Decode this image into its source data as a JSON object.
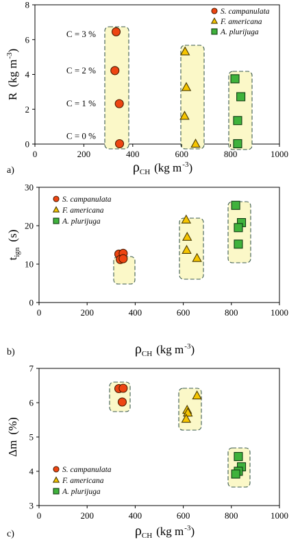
{
  "x_axis_label": {
    "main": "ρ",
    "sub": "CH",
    "units": "(kg m",
    "sup": "-3",
    "close": ")"
  },
  "legend_labels": {
    "s": "S. campanulata",
    "f": "F. americana",
    "a": "A. plurijuga"
  },
  "colors": {
    "s_campanulata": "#ee4512",
    "f_americana": "#f6c500",
    "a_plurijuga": "#3fb23c",
    "group_box_fill": "#fbf8c8",
    "group_box_stroke": "#3a5a4f"
  },
  "chart_data": [
    {
      "type": "scatter",
      "panel_label": "a)",
      "ylabel": {
        "main": "R",
        "units": "(kg m",
        "sup": "-3",
        "close": ")"
      },
      "xlim": [
        0,
        1000
      ],
      "ylim": [
        0,
        8
      ],
      "xticks": [
        0,
        200,
        400,
        600,
        800,
        1000
      ],
      "yticks": [
        0,
        2,
        4,
        6,
        8
      ],
      "legend_position": "top-right",
      "annotations": [
        "C = 3 %",
        "C = 2 %",
        "C = 1 %",
        "C = 0 %"
      ],
      "series": [
        {
          "name": "S. campanulata",
          "marker": "circle",
          "x": [
            332,
            327,
            345,
            346
          ],
          "y": [
            6.45,
            4.22,
            2.32,
            0.02
          ]
        },
        {
          "name": "F. americana",
          "marker": "triangle",
          "x": [
            614,
            619,
            612,
            657
          ],
          "y": [
            5.3,
            3.25,
            1.6,
            0.0
          ]
        },
        {
          "name": "A. plurijuga",
          "marker": "square",
          "x": [
            818,
            842,
            829,
            829
          ],
          "y": [
            3.75,
            2.72,
            1.35,
            0.02
          ]
        }
      ]
    },
    {
      "type": "scatter",
      "panel_label": "b)",
      "ylabel": {
        "main": "t",
        "sub": "ign",
        "units": "(s)"
      },
      "xlim": [
        0,
        1000
      ],
      "ylim": [
        0,
        30
      ],
      "xticks": [
        0,
        200,
        400,
        600,
        800,
        1000
      ],
      "yticks": [
        0,
        10,
        20,
        30
      ],
      "legend_position": "top-left",
      "series": [
        {
          "name": "S. campanulata",
          "marker": "circle",
          "x": [
            332,
            350,
            338,
            350
          ],
          "y": [
            12.6,
            12.8,
            11.2,
            11.4
          ]
        },
        {
          "name": "F. americana",
          "marker": "triangle",
          "x": [
            612,
            616,
            614,
            657
          ],
          "y": [
            21.5,
            17.0,
            13.6,
            11.5
          ]
        },
        {
          "name": "A. plurijuga",
          "marker": "square",
          "x": [
            818,
            842,
            829,
            829
          ],
          "y": [
            25.3,
            20.8,
            19.5,
            15.2
          ]
        }
      ]
    },
    {
      "type": "scatter",
      "panel_label": "c)",
      "ylabel": {
        "main": "Δm",
        "units": "(%)"
      },
      "xlim": [
        0,
        1000
      ],
      "ylim": [
        3,
        7
      ],
      "xticks": [
        0,
        200,
        400,
        600,
        800,
        1000
      ],
      "yticks": [
        3,
        4,
        5,
        6,
        7
      ],
      "legend_position": "bottom-left",
      "series": [
        {
          "name": "S. campanulata",
          "marker": "circle",
          "x": [
            332,
            350,
            346
          ],
          "y": [
            6.41,
            6.42,
            6.02
          ]
        },
        {
          "name": "F. americana",
          "marker": "triangle",
          "x": [
            657,
            616,
            619,
            612
          ],
          "y": [
            6.2,
            5.78,
            5.7,
            5.52
          ]
        },
        {
          "name": "A. plurijuga",
          "marker": "square",
          "x": [
            829,
            842,
            829,
            818
          ],
          "y": [
            4.43,
            4.13,
            4.0,
            3.92
          ]
        }
      ]
    }
  ]
}
